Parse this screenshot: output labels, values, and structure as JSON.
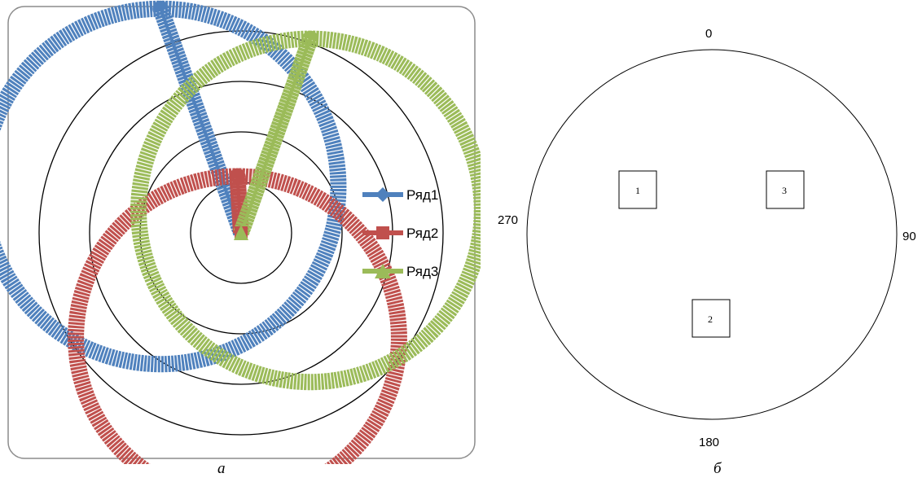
{
  "chart_data": {
    "type": "radar",
    "rings": 4,
    "grid": true,
    "legend_position": "right",
    "series": [
      {
        "name": "Ряд1",
        "color": "#4F81BD",
        "marker": "diamond",
        "center_r": 0.46,
        "center_theta_deg": 300,
        "radius": 0.88
      },
      {
        "name": "Ряд2",
        "color": "#C0504D",
        "marker": "square",
        "center_r": 0.52,
        "center_theta_deg": 182,
        "radius": 0.8
      },
      {
        "name": "Ряд3",
        "color": "#9BBB59",
        "marker": "triangle",
        "center_r": 0.36,
        "center_theta_deg": 72,
        "radius": 0.85
      }
    ]
  },
  "captions": {
    "a": "а",
    "b": "б"
  },
  "diagram": {
    "directions": {
      "top": "0",
      "right": "90",
      "bottom": "180",
      "left": "270"
    },
    "boxes": [
      {
        "label": "1"
      },
      {
        "label": "2"
      },
      {
        "label": "3"
      }
    ]
  }
}
